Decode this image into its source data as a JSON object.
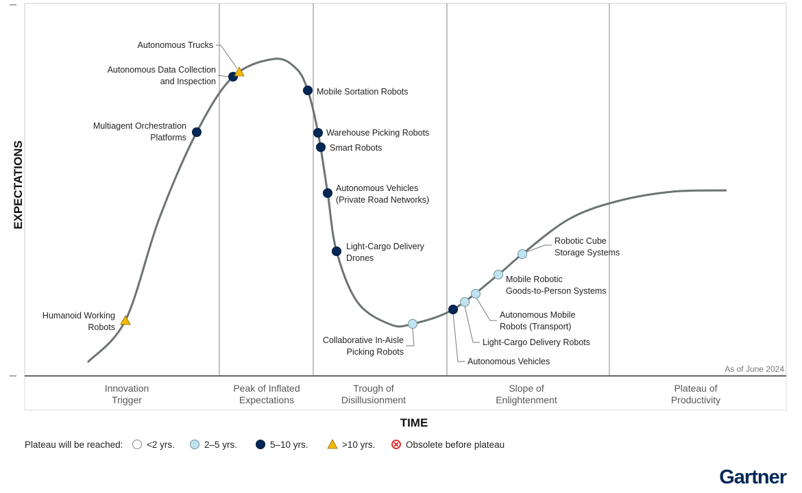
{
  "chart_data": {
    "type": "hype-cycle",
    "ylabel": "EXPECTATIONS",
    "xlabel": "TIME",
    "as_of": "As of June 2024",
    "phases": [
      [
        "Innovation",
        "Trigger"
      ],
      [
        "Peak of Inflated",
        "Expectations"
      ],
      [
        "Trough of",
        "Disillusionment"
      ],
      [
        "Slope of",
        "Enlightenment"
      ],
      [
        "Plateau of",
        "Productivity"
      ]
    ],
    "legend": {
      "title": "Plateau will be reached:",
      "items": [
        {
          "key": "lt2",
          "label": "<2 yrs.",
          "color": "#ffffff"
        },
        {
          "key": "2to5",
          "label": "2–5 yrs.",
          "color": "#c2e4f2"
        },
        {
          "key": "5to10",
          "label": "5–10 yrs.",
          "color": "#002856"
        },
        {
          "key": "gt10",
          "label": ">10 yrs.",
          "color": "#f5b800"
        },
        {
          "key": "obsolete",
          "label": "Obsolete before plateau",
          "color": "#e02020"
        }
      ]
    },
    "technologies": [
      {
        "name": [
          "Humanoid Working",
          "Robots"
        ],
        "phase": "Innovation Trigger",
        "plateau": "gt10"
      },
      {
        "name": [
          "Multiagent Orchestration",
          "Platforms"
        ],
        "phase": "Innovation Trigger",
        "plateau": "5to10"
      },
      {
        "name": [
          "Autonomous Data Collection",
          "and Inspection"
        ],
        "phase": "Peak of Inflated Expectations",
        "plateau": "5to10"
      },
      {
        "name": [
          "Autonomous Trucks"
        ],
        "phase": "Peak of Inflated Expectations",
        "plateau": "gt10"
      },
      {
        "name": [
          "Mobile Sortation Robots"
        ],
        "phase": "Peak of Inflated Expectations",
        "plateau": "5to10"
      },
      {
        "name": [
          "Warehouse Picking Robots"
        ],
        "phase": "Trough of Disillusionment",
        "plateau": "5to10"
      },
      {
        "name": [
          "Smart Robots"
        ],
        "phase": "Trough of Disillusionment",
        "plateau": "5to10"
      },
      {
        "name": [
          "Autonomous Vehicles",
          "(Private Road Networks)"
        ],
        "phase": "Trough of Disillusionment",
        "plateau": "5to10"
      },
      {
        "name": [
          "Light-Cargo Delivery",
          "Drones"
        ],
        "phase": "Trough of Disillusionment",
        "plateau": "5to10"
      },
      {
        "name": [
          "Collaborative In-Aisle",
          "Picking Robots"
        ],
        "phase": "Trough of Disillusionment",
        "plateau": "2to5"
      },
      {
        "name": [
          "Autonomous Vehicles"
        ],
        "phase": "Slope of Enlightenment",
        "plateau": "5to10"
      },
      {
        "name": [
          "Light-Cargo Delivery Robots"
        ],
        "phase": "Slope of Enlightenment",
        "plateau": "2to5"
      },
      {
        "name": [
          "Autonomous Mobile",
          "Robots (Transport)"
        ],
        "phase": "Slope of Enlightenment",
        "plateau": "2to5"
      },
      {
        "name": [
          "Mobile Robotic",
          "Goods-to-Person Systems"
        ],
        "phase": "Slope of Enlightenment",
        "plateau": "2to5"
      },
      {
        "name": [
          "Robotic Cube",
          "Storage Systems"
        ],
        "phase": "Slope of Enlightenment",
        "plateau": "2to5"
      }
    ],
    "curve_color": "#6d7373"
  },
  "brand": {
    "logo_text": "Gartner",
    "color": "#002856"
  }
}
